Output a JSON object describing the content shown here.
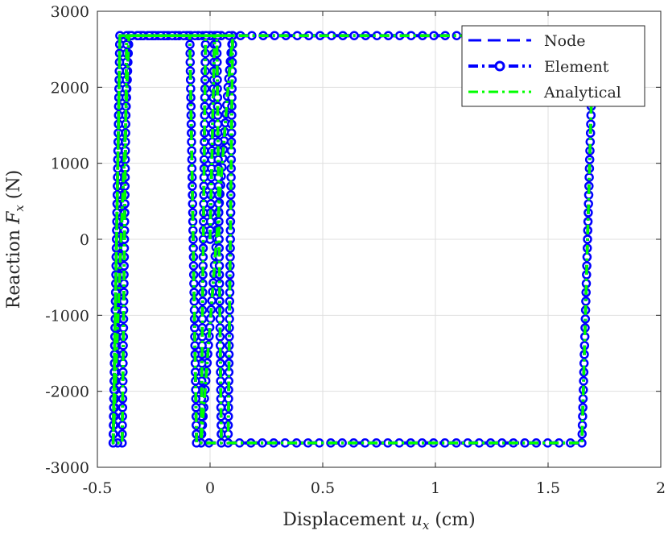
{
  "chart_data": {
    "type": "line",
    "title": "",
    "xlabel": "Displacement u_x (cm)",
    "xlabel_parts": {
      "pre": "Displacement ",
      "var": "u",
      "sub": "x",
      "post": " (cm)"
    },
    "ylabel": "Reaction F_x (N)",
    "ylabel_parts": {
      "pre": "Reaction ",
      "var": "F",
      "sub": "x",
      "post": " (N)"
    },
    "xlim": [
      -0.5,
      2
    ],
    "ylim": [
      -3000,
      3000
    ],
    "xticks": [
      -0.5,
      0,
      0.5,
      1,
      1.5,
      2
    ],
    "xtick_labels": [
      "-0.5",
      "0",
      "0.5",
      "1",
      "1.5",
      "2"
    ],
    "yticks": [
      -3000,
      -2000,
      -1000,
      0,
      1000,
      2000,
      3000
    ],
    "ytick_labels": [
      "-3000",
      "-2000",
      "-1000",
      "0",
      "1000",
      "2000",
      "3000"
    ],
    "grid": true,
    "legend_position": "top-right",
    "series": [
      {
        "name": "Node",
        "color": "#0000ff",
        "style": "dashed",
        "x": [
          0,
          0.02,
          -0.4,
          -0.43,
          -0.36,
          0.1,
          0.08,
          -0.04,
          -0.02,
          0.03,
          0.05,
          -0.06,
          -0.09,
          -0.37,
          -0.39,
          -0.43,
          -0.4,
          0.1,
          0.08,
          1.65,
          1.7,
          -0.37
        ],
        "y": [
          0,
          2680,
          2680,
          -2680,
          2680,
          2680,
          2000,
          -2680,
          2680,
          2680,
          -2680,
          -2680,
          2680,
          2680,
          -2680,
          -2680,
          2680,
          2680,
          -2680,
          -2680,
          2680,
          2680
        ]
      },
      {
        "name": "Element",
        "color": "#0000ff",
        "style": "dashdot-circle",
        "x": [
          0,
          0.02,
          -0.4,
          -0.43,
          -0.36,
          0.1,
          0.08,
          -0.04,
          -0.02,
          0.03,
          0.05,
          -0.06,
          -0.09,
          -0.37,
          -0.39,
          -0.43,
          -0.4,
          0.1,
          0.08,
          1.65,
          1.7,
          -0.37
        ],
        "y": [
          0,
          2680,
          2680,
          -2680,
          2680,
          2680,
          2000,
          -2680,
          2680,
          2680,
          -2680,
          -2680,
          2680,
          2680,
          -2680,
          -2680,
          2680,
          2680,
          -2680,
          -2680,
          2680,
          2680
        ]
      },
      {
        "name": "Analytical",
        "color": "#00ff00",
        "style": "dashdot",
        "x": [
          0,
          0.02,
          -0.4,
          -0.43,
          -0.36,
          0.1,
          0.08,
          -0.04,
          -0.02,
          0.03,
          0.05,
          -0.06,
          -0.09,
          -0.37,
          -0.39,
          -0.43,
          -0.4,
          0.1,
          0.08,
          1.65,
          1.7,
          -0.37
        ],
        "y": [
          0,
          2680,
          2680,
          -2680,
          2680,
          2680,
          2000,
          -2680,
          2680,
          2680,
          -2680,
          -2680,
          2680,
          2680,
          -2680,
          -2680,
          2680,
          2680,
          -2680,
          -2680,
          2680,
          2680
        ]
      }
    ]
  }
}
